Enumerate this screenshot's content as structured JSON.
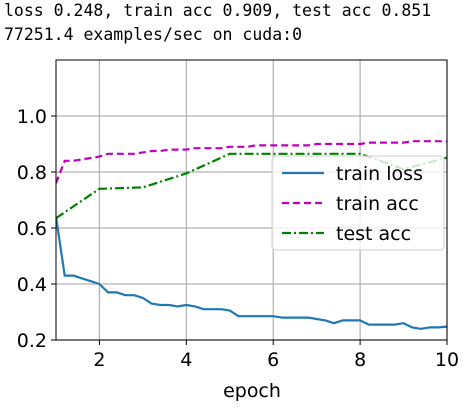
{
  "log": {
    "line1": "loss 0.248, train acc 0.909, test acc 0.851",
    "line2": "77251.4 examples/sec on cuda:0"
  },
  "chart_data": {
    "type": "line",
    "title": "",
    "xlabel": "epoch",
    "ylabel": "",
    "xlim": [
      1,
      10
    ],
    "ylim": [
      0.2,
      1.2
    ],
    "xticks": [
      2,
      4,
      6,
      8,
      10
    ],
    "yticks": [
      0.2,
      0.4,
      0.6,
      0.8,
      1.0
    ],
    "xtick_labels": [
      "2",
      "4",
      "6",
      "8",
      "10"
    ],
    "ytick_labels": [
      "0.2",
      "0.4",
      "0.6",
      "0.8",
      "1.0"
    ],
    "grid": true,
    "legend_position": "center-right",
    "series": [
      {
        "name": "train loss",
        "color": "#1f77b4",
        "style": "solid",
        "x": [
          1.0,
          1.2,
          1.4,
          1.6,
          1.8,
          2.0,
          2.2,
          2.4,
          2.6,
          2.8,
          3.0,
          3.2,
          3.4,
          3.6,
          3.8,
          4.0,
          4.2,
          4.4,
          4.6,
          4.8,
          5.0,
          5.2,
          5.4,
          5.6,
          5.8,
          6.0,
          6.2,
          6.4,
          6.6,
          6.8,
          7.0,
          7.2,
          7.4,
          7.6,
          7.8,
          8.0,
          8.2,
          8.4,
          8.6,
          8.8,
          9.0,
          9.2,
          9.4,
          9.6,
          9.8,
          10.0
        ],
        "values": [
          0.64,
          0.43,
          0.43,
          0.42,
          0.41,
          0.4,
          0.37,
          0.37,
          0.36,
          0.36,
          0.35,
          0.33,
          0.325,
          0.325,
          0.32,
          0.325,
          0.32,
          0.31,
          0.31,
          0.31,
          0.305,
          0.285,
          0.285,
          0.285,
          0.285,
          0.285,
          0.28,
          0.28,
          0.28,
          0.28,
          0.275,
          0.27,
          0.26,
          0.27,
          0.27,
          0.27,
          0.255,
          0.255,
          0.255,
          0.255,
          0.26,
          0.245,
          0.24,
          0.245,
          0.245,
          0.248
        ]
      },
      {
        "name": "train acc",
        "color": "#bf00bf",
        "style": "dashed",
        "x": [
          1.0,
          1.2,
          1.4,
          1.6,
          1.8,
          2.0,
          2.2,
          2.4,
          2.6,
          2.8,
          3.0,
          3.2,
          3.4,
          3.6,
          3.8,
          4.0,
          4.2,
          4.4,
          4.6,
          4.8,
          5.0,
          5.2,
          5.4,
          5.6,
          5.8,
          6.0,
          6.2,
          6.4,
          6.6,
          6.8,
          7.0,
          7.2,
          7.4,
          7.6,
          7.8,
          8.0,
          8.2,
          8.4,
          8.6,
          8.8,
          9.0,
          9.2,
          9.4,
          9.6,
          9.8,
          10.0
        ],
        "values": [
          0.76,
          0.84,
          0.84,
          0.845,
          0.85,
          0.855,
          0.865,
          0.865,
          0.865,
          0.865,
          0.87,
          0.875,
          0.875,
          0.88,
          0.88,
          0.88,
          0.885,
          0.885,
          0.885,
          0.885,
          0.89,
          0.89,
          0.89,
          0.895,
          0.895,
          0.895,
          0.895,
          0.895,
          0.895,
          0.895,
          0.9,
          0.9,
          0.9,
          0.9,
          0.9,
          0.9,
          0.905,
          0.905,
          0.905,
          0.905,
          0.905,
          0.91,
          0.91,
          0.91,
          0.91,
          0.909
        ]
      },
      {
        "name": "test acc",
        "color": "#008000",
        "style": "dashdot",
        "x": [
          1,
          2,
          3,
          4,
          5,
          6,
          7,
          8,
          9,
          10
        ],
        "values": [
          0.635,
          0.74,
          0.745,
          0.795,
          0.865,
          0.865,
          0.865,
          0.865,
          0.81,
          0.851
        ]
      }
    ]
  }
}
